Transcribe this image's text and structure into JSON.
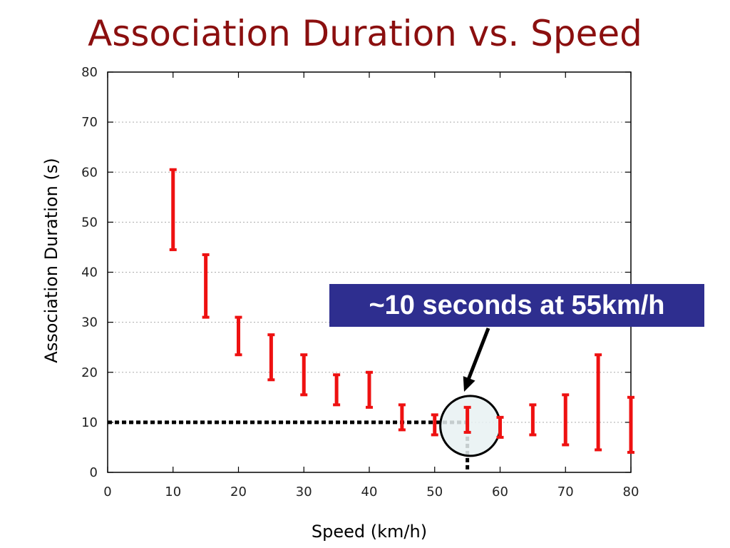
{
  "colors": {
    "title": "#8b0f0f",
    "errorbar": "#ee1111",
    "callout_bg": "#2e2e8f",
    "callout_text": "#ffffff",
    "grid": "#aaaaaa",
    "highlight_fill": "#e8f1f2"
  },
  "chart_data": {
    "type": "errorbar",
    "title": "Association Duration vs. Speed",
    "xlabel": "Speed (km/h)",
    "ylabel": "Association Duration (s)",
    "xlim": [
      0,
      80
    ],
    "ylim": [
      0,
      80
    ],
    "xticks": [
      0,
      10,
      20,
      30,
      40,
      50,
      60,
      70,
      80
    ],
    "yticks": [
      0,
      10,
      20,
      30,
      40,
      50,
      60,
      70,
      80
    ],
    "grid": "horizontal dotted",
    "series": [
      {
        "points": [
          {
            "x": 10,
            "low": 44.5,
            "high": 60.5,
            "mid": 52.5
          },
          {
            "x": 15,
            "low": 31,
            "high": 43.5,
            "mid": 37
          },
          {
            "x": 20,
            "low": 23.5,
            "high": 31,
            "mid": 27
          },
          {
            "x": 25,
            "low": 18.5,
            "high": 27.5,
            "mid": 23
          },
          {
            "x": 30,
            "low": 15.5,
            "high": 23.5,
            "mid": 19.5
          },
          {
            "x": 35,
            "low": 13.5,
            "high": 19.5,
            "mid": 16.5
          },
          {
            "x": 40,
            "low": 13,
            "high": 20,
            "mid": 16.5
          },
          {
            "x": 45,
            "low": 8.5,
            "high": 13.5,
            "mid": 11
          },
          {
            "x": 50,
            "low": 7.5,
            "high": 11.5,
            "mid": 9.5
          },
          {
            "x": 55,
            "low": 8,
            "high": 13,
            "mid": 10.5
          },
          {
            "x": 60,
            "low": 7,
            "high": 11,
            "mid": 9
          },
          {
            "x": 65,
            "low": 7.5,
            "high": 13.5,
            "mid": 10.5
          },
          {
            "x": 70,
            "low": 5.5,
            "high": 15.5,
            "mid": 10.5
          },
          {
            "x": 75,
            "low": 4.5,
            "high": 23.5,
            "mid": 14
          },
          {
            "x": 80,
            "low": 4,
            "high": 15,
            "mid": 9.5
          }
        ]
      }
    ],
    "annotation": {
      "text": "~10 seconds at 55km/h",
      "point": {
        "x": 55,
        "y": 10
      }
    }
  }
}
